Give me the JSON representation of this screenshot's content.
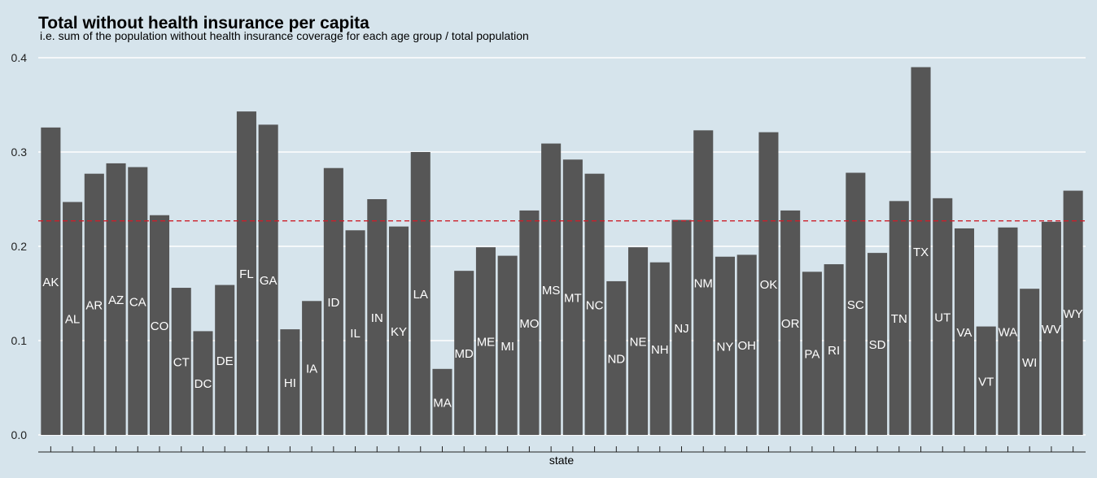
{
  "chart_data": {
    "type": "bar",
    "title": "Total without health insurance per capita",
    "subtitle": "i.e. sum of the population without health insurance coverage for each age group / total population",
    "xlabel": "state",
    "ylabel": "",
    "ylim": [
      0,
      0.4
    ],
    "yticks": [
      "0.0",
      "0.1",
      "0.2",
      "0.3",
      "0.4"
    ],
    "reference_line": 0.227,
    "grid": true,
    "colors": {
      "background": "#d6e4ec",
      "bar": "#565656",
      "grid": "#ffffff",
      "reference_line": "#cc1f2a",
      "label": "#ffffff"
    },
    "categories": [
      "AK",
      "AL",
      "AR",
      "AZ",
      "CA",
      "CO",
      "CT",
      "DC",
      "DE",
      "FL",
      "GA",
      "HI",
      "IA",
      "ID",
      "IL",
      "IN",
      "KY",
      "LA",
      "MA",
      "MD",
      "ME",
      "MI",
      "MO",
      "MS",
      "MT",
      "NC",
      "ND",
      "NE",
      "NH",
      "NJ",
      "NM",
      "NY",
      "OH",
      "OK",
      "OR",
      "PA",
      "RI",
      "SC",
      "SD",
      "TN",
      "TX",
      "UT",
      "VA",
      "VT",
      "WA",
      "WI",
      "WV",
      "WY"
    ],
    "values": [
      0.326,
      0.247,
      0.277,
      0.288,
      0.284,
      0.233,
      0.156,
      0.11,
      0.159,
      0.343,
      0.329,
      0.112,
      0.142,
      0.283,
      0.217,
      0.25,
      0.221,
      0.3,
      0.07,
      0.174,
      0.199,
      0.19,
      0.238,
      0.309,
      0.292,
      0.277,
      0.163,
      0.199,
      0.183,
      0.228,
      0.323,
      0.189,
      0.191,
      0.321,
      0.238,
      0.173,
      0.181,
      0.278,
      0.193,
      0.248,
      0.39,
      0.251,
      0.219,
      0.115,
      0.22,
      0.155,
      0.226,
      0.259
    ]
  }
}
